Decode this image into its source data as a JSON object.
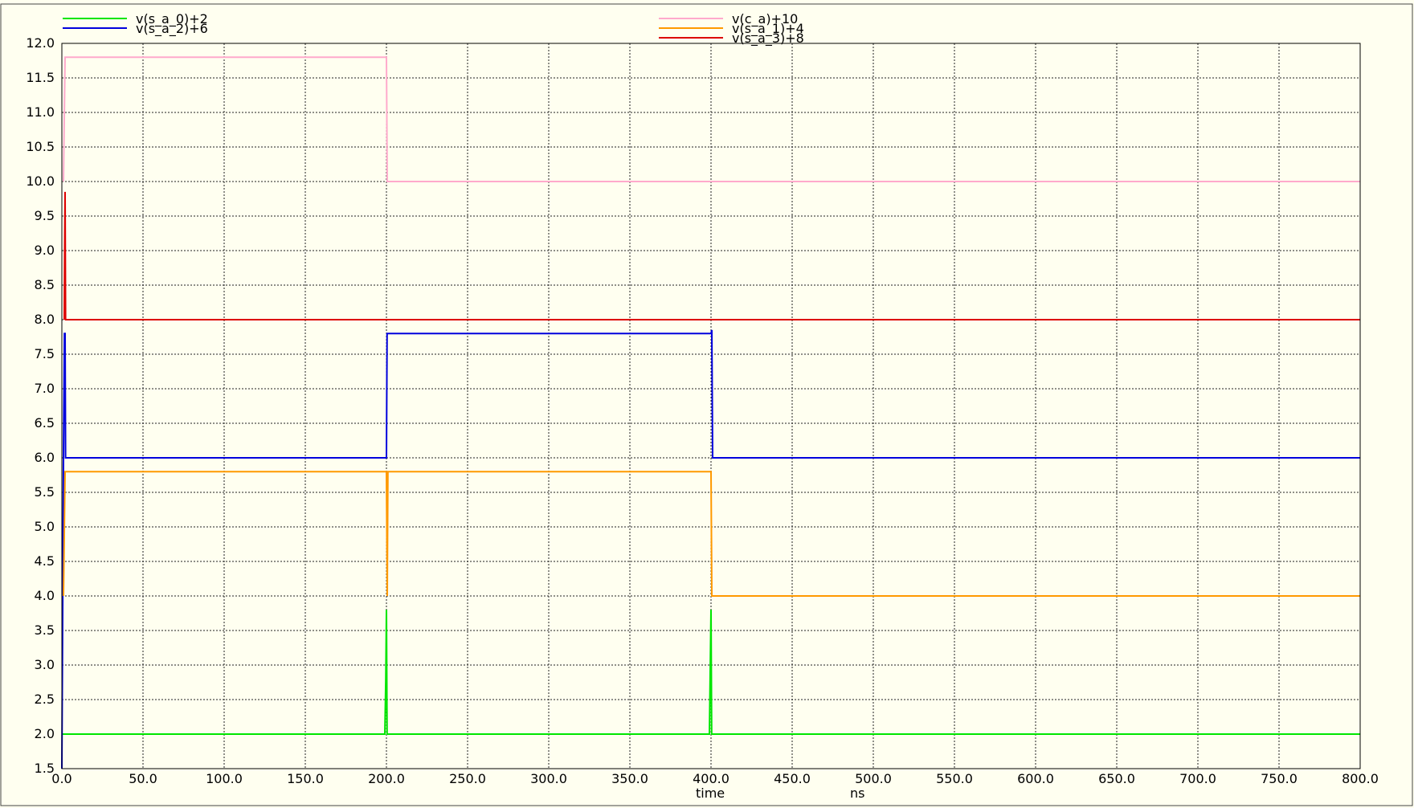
{
  "chart_data": {
    "type": "line",
    "xlabel": "time",
    "xunit": "ns",
    "xlim": [
      0,
      800
    ],
    "ylim": [
      1.5,
      12
    ],
    "x_ticks": [
      "0.0",
      "50.0",
      "100.0",
      "150.0",
      "200.0",
      "250.0",
      "300.0",
      "350.0",
      "400.0",
      "450.0",
      "500.0",
      "550.0",
      "600.0",
      "650.0",
      "700.0",
      "750.0",
      "800.0"
    ],
    "y_ticks": [
      "1.5",
      "2.0",
      "2.5",
      "3.0",
      "3.5",
      "4.0",
      "4.5",
      "5.0",
      "5.5",
      "6.0",
      "6.5",
      "7.0",
      "7.5",
      "8.0",
      "8.5",
      "9.0",
      "9.5",
      "10.0",
      "10.5",
      "11.0",
      "11.5",
      "12.0"
    ],
    "grid": true,
    "series": [
      {
        "name": "v(s_a_0)+2",
        "color": "#00e600",
        "points": [
          [
            0,
            2
          ],
          [
            199,
            2
          ],
          [
            199.6,
            2.8
          ],
          [
            200,
            3.8
          ],
          [
            200.4,
            2.0
          ],
          [
            201,
            2
          ],
          [
            399,
            2
          ],
          [
            400,
            3.8
          ],
          [
            400.4,
            2.0
          ],
          [
            401,
            2
          ],
          [
            800,
            2
          ]
        ]
      },
      {
        "name": "v(s_a_2)+6",
        "color": "#0000dd",
        "points": [
          [
            0,
            1.5
          ],
          [
            1,
            6
          ],
          [
            1.6,
            7.8
          ],
          [
            2,
            7.8
          ],
          [
            2.3,
            6
          ],
          [
            200,
            6
          ],
          [
            200.4,
            7.8
          ],
          [
            400,
            7.8
          ],
          [
            400.5,
            7.85
          ],
          [
            401,
            6
          ],
          [
            800,
            6
          ]
        ]
      },
      {
        "name": "v(c_a)+10",
        "color": "#ffaacc",
        "points": [
          [
            1,
            10
          ],
          [
            2,
            11.8
          ],
          [
            200,
            11.8
          ],
          [
            200.5,
            10
          ],
          [
            800,
            10
          ]
        ]
      },
      {
        "name": "v(s_a_1)+4",
        "color": "#ff9900",
        "points": [
          [
            1,
            4
          ],
          [
            2,
            5.8
          ],
          [
            200,
            5.8
          ],
          [
            200.5,
            4
          ],
          [
            200.9,
            5.8
          ],
          [
            400,
            5.8
          ],
          [
            400.5,
            4
          ],
          [
            800,
            4
          ]
        ]
      },
      {
        "name": "v(s_a_3)+8",
        "color": "#dd0000",
        "points": [
          [
            1.5,
            8
          ],
          [
            1.8,
            9.2
          ],
          [
            2,
            9.85
          ],
          [
            2.3,
            8
          ],
          [
            800,
            8
          ]
        ]
      }
    ]
  }
}
